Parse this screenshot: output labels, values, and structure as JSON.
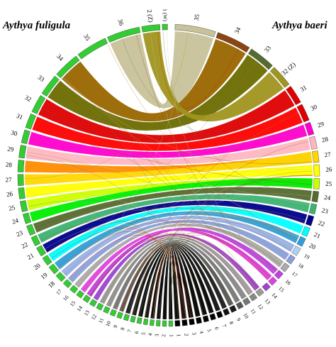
{
  "species": {
    "left": "Aythya fuligula",
    "right": "Aythya baeri"
  },
  "palette": {
    "1": "#000000",
    "2": "#000000",
    "3": "#000000",
    "4": "#000000",
    "5": "#000000",
    "6": "#000000",
    "7": "#111111",
    "8": "#1a1a1a",
    "9": "#555555",
    "10": "#777777",
    "11": "#888888",
    "12": "#9a9a9a",
    "13": "#9d44cf",
    "14": "#c040e0",
    "15": "#e040e0",
    "16": "#aaaaaa",
    "17": "#8a9fd8",
    "18": "#9ab0e8",
    "19": "#b0d0f0",
    "20": "#2f9fd8",
    "21": "#00ffff",
    "22": "#00008b",
    "23": "#3cb371",
    "24": "#556b2f",
    "25": "#00ee00",
    "26": "#ccff00",
    "27": "#ffff00",
    "28": "#ffd700",
    "29": "#ffb6c1",
    "30": "#ff00cc",
    "31": "#ff0000",
    "32": "#6b6b00",
    "33": "#cc0000",
    "34": "#8b4513",
    "35": "#c8c29a",
    "36": "#996600",
    "W": "#ffffff",
    "Z": "#d8d2a8"
  },
  "fuligula": {
    "ring_color": "#33cc33",
    "chromosomes": [
      {
        "label": "1",
        "size": 1.2
      },
      {
        "label": "2",
        "size": 1.2
      },
      {
        "label": "3",
        "size": 1.2
      },
      {
        "label": "4",
        "size": 1.2
      },
      {
        "label": "5",
        "size": 1.2
      },
      {
        "label": "6",
        "size": 1.3
      },
      {
        "label": "7",
        "size": 1.3
      },
      {
        "label": "8",
        "size": 1.4
      },
      {
        "label": "9",
        "size": 1.4
      },
      {
        "label": "10",
        "size": 1.5
      },
      {
        "label": "11",
        "size": 1.5
      },
      {
        "label": "12",
        "size": 1.6
      },
      {
        "label": "13",
        "size": 1.6
      },
      {
        "label": "14",
        "size": 1.7
      },
      {
        "label": "15",
        "size": 1.7
      },
      {
        "label": "16",
        "size": 1.8
      },
      {
        "label": "17",
        "size": 2.0
      },
      {
        "label": "18",
        "size": 2.4
      },
      {
        "label": "19",
        "size": 2.6
      },
      {
        "label": "20",
        "size": 2.6
      },
      {
        "label": "21",
        "size": 2.8
      },
      {
        "label": "22",
        "size": 2.8
      },
      {
        "label": "23",
        "size": 3.0
      },
      {
        "label": "24",
        "size": 3.0
      },
      {
        "label": "25",
        "size": 3.2
      },
      {
        "label": "26",
        "size": 3.3
      },
      {
        "label": "27",
        "size": 3.4
      },
      {
        "label": "28",
        "size": 3.6
      },
      {
        "label": "29",
        "size": 3.8
      },
      {
        "label": "30",
        "size": 4.0
      },
      {
        "label": "31",
        "size": 4.4
      },
      {
        "label": "32",
        "size": 5.5
      },
      {
        "label": "33",
        "size": 6.5
      },
      {
        "label": "34",
        "size": 8.0
      },
      {
        "label": "35",
        "size": 9.5
      },
      {
        "label": "36",
        "size": 10.0
      },
      {
        "label": "2 (Z)",
        "size": 5.5
      },
      {
        "label": "1 (W)",
        "size": 1.6
      }
    ]
  },
  "baeri": {
    "ring_color": "#c8c29a",
    "chromosomes": [
      {
        "label": "35",
        "size": 10.0,
        "color": "#c8c29a"
      },
      {
        "label": "34",
        "size": 8.5,
        "color": "#8b4513"
      },
      {
        "label": "33",
        "size": 6.5,
        "color": "#556b2f"
      },
      {
        "label": "32 (Z)",
        "size": 5.5,
        "color": "#a0951e"
      },
      {
        "label": "31",
        "size": 4.6,
        "color": "#dd0000"
      },
      {
        "label": "30",
        "size": 4.2,
        "color": "#dd0000"
      },
      {
        "label": "29",
        "size": 3.0,
        "color": "#ff00cc"
      },
      {
        "label": "28",
        "size": 3.0,
        "color": "#ffb6c1"
      },
      {
        "label": "27",
        "size": 2.8,
        "color": "#ffd700"
      },
      {
        "label": "26",
        "size": 2.8,
        "color": "#ffff00"
      },
      {
        "label": "25",
        "size": 2.6,
        "color": "#ccff00"
      },
      {
        "label": "24",
        "size": 2.6,
        "color": "#556b2f"
      },
      {
        "label": "23",
        "size": 2.4,
        "color": "#3cb371"
      },
      {
        "label": "22",
        "size": 2.4,
        "color": "#00008b"
      },
      {
        "label": "21",
        "size": 2.2,
        "color": "#00ffff"
      },
      {
        "label": "20",
        "size": 2.1,
        "color": "#2f9fd8"
      },
      {
        "label": "19",
        "size": 2.0,
        "color": "#b0d0f0"
      },
      {
        "label": "18",
        "size": 1.9,
        "color": "#8a9fd8"
      },
      {
        "label": "17",
        "size": 1.8,
        "color": "#aaaaaa"
      },
      {
        "label": "16",
        "size": 1.7,
        "color": "#c040e0"
      },
      {
        "label": "15",
        "size": 1.6,
        "color": "#e040e0"
      },
      {
        "label": "14",
        "size": 1.5,
        "color": "#9d44cf"
      },
      {
        "label": "13",
        "size": 1.5,
        "color": "#9a9a9a"
      },
      {
        "label": "12",
        "size": 1.4,
        "color": "#888888"
      },
      {
        "label": "11",
        "size": 1.4,
        "color": "#777777"
      },
      {
        "label": "10",
        "size": 1.3,
        "color": "#555555"
      },
      {
        "label": "9",
        "size": 1.3,
        "color": "#1a1a1a"
      },
      {
        "label": "8",
        "size": 1.2,
        "color": "#111111"
      },
      {
        "label": "7",
        "size": 1.2,
        "color": "#000000"
      },
      {
        "label": "6",
        "size": 1.2,
        "color": "#000000"
      },
      {
        "label": "5",
        "size": 1.2,
        "color": "#000000"
      },
      {
        "label": "4",
        "size": 1.2,
        "color": "#000000"
      },
      {
        "label": "3",
        "size": 1.2,
        "color": "#000000"
      },
      {
        "label": "2",
        "size": 1.2,
        "color": "#000000"
      },
      {
        "label": "1",
        "size": 1.2,
        "color": "#000000"
      }
    ]
  },
  "links": [
    {
      "from": "1",
      "to": "1",
      "color": "#000000"
    },
    {
      "from": "2",
      "to": "2",
      "color": "#000000"
    },
    {
      "from": "3",
      "to": "3",
      "color": "#000000"
    },
    {
      "from": "4",
      "to": "4",
      "color": "#000000"
    },
    {
      "from": "5",
      "to": "5",
      "color": "#000000"
    },
    {
      "from": "6",
      "to": "6",
      "color": "#000000"
    },
    {
      "from": "7",
      "to": "7",
      "color": "#111111"
    },
    {
      "from": "8",
      "to": "8",
      "color": "#1a1a1a"
    },
    {
      "from": "9",
      "to": "9",
      "color": "#555555"
    },
    {
      "from": "10",
      "to": "10",
      "color": "#777777"
    },
    {
      "from": "11",
      "to": "11",
      "color": "#888888"
    },
    {
      "from": "12",
      "to": "12",
      "color": "#9a9a9a"
    },
    {
      "from": "13",
      "to": "13",
      "color": "#9d44cf"
    },
    {
      "from": "14",
      "to": "16",
      "color": "#c040e0"
    },
    {
      "from": "15",
      "to": "15",
      "color": "#e040e0"
    },
    {
      "from": "16",
      "to": "17",
      "color": "#aaaaaa"
    },
    {
      "from": "17",
      "to": "18",
      "color": "#8a9fd8"
    },
    {
      "from": "18",
      "to": "19",
      "color": "#9ab0e8"
    },
    {
      "from": "19",
      "to": "20",
      "color": "#2f9fd8"
    },
    {
      "from": "20",
      "to": "21",
      "color": "#00ffff"
    },
    {
      "from": "21",
      "to": "22",
      "color": "#00008b"
    },
    {
      "from": "22",
      "to": "23",
      "color": "#3cb371"
    },
    {
      "from": "23",
      "to": "24",
      "color": "#556b2f"
    },
    {
      "from": "24",
      "to": "25",
      "color": "#00ee00"
    },
    {
      "from": "25",
      "to": "25",
      "color": "#ccff00"
    },
    {
      "from": "26",
      "to": "26",
      "color": "#ffff00"
    },
    {
      "from": "27",
      "to": "27",
      "color": "#ffd700"
    },
    {
      "from": "28",
      "to": "27",
      "color": "#ff8c00"
    },
    {
      "from": "29",
      "to": "28",
      "color": "#ffb6c1"
    },
    {
      "from": "30",
      "to": "29",
      "color": "#ff00cc"
    },
    {
      "from": "31",
      "to": "30",
      "color": "#ff0000"
    },
    {
      "from": "32",
      "to": "31",
      "color": "#dd0000"
    },
    {
      "from": "33",
      "to": "33",
      "color": "#6b6b00"
    },
    {
      "from": "34",
      "to": "34",
      "color": "#996600"
    },
    {
      "from": "36",
      "to": "35",
      "color": "#c8c29a"
    },
    {
      "from": "2 (Z)",
      "to": "32 (Z)",
      "color": "#a0951e"
    }
  ]
}
